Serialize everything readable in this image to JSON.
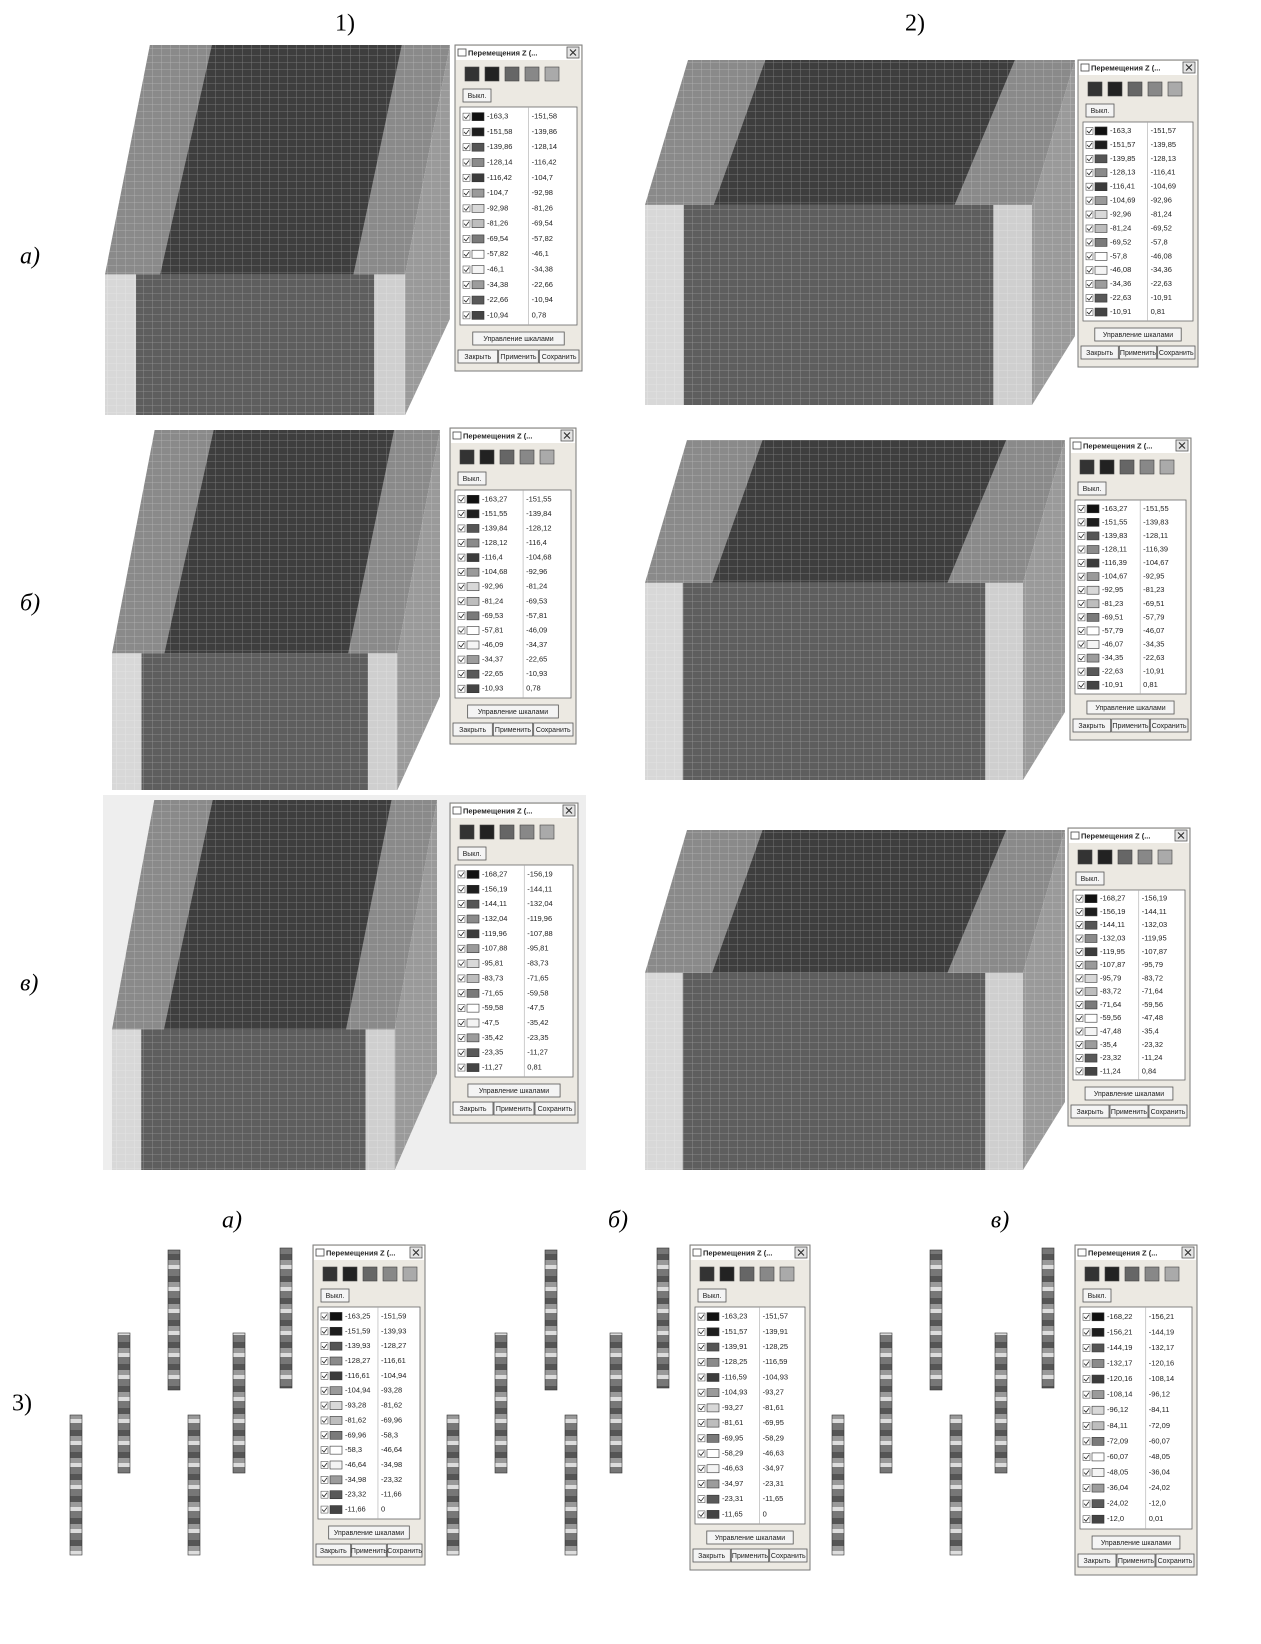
{
  "column_labels": [
    "1)",
    "2)"
  ],
  "row_labels": [
    "а)",
    "б)",
    "в)",
    "3)"
  ],
  "bottom_labels": [
    "а)",
    "б)",
    "в)"
  ],
  "dialog_ui": {
    "title": "Перемещения Z (...",
    "off_button": "Выкл.",
    "scale_button": "Управление шкалами",
    "close_button": "Закрыть",
    "apply_button": "Применить",
    "save_button": "Сохранить"
  },
  "swatch_colors": [
    "#111111",
    "#1e1e1e",
    "#555555",
    "#8a8a8a",
    "#3c3c3c",
    "#9a9a9a",
    "#d8d8d8",
    "#bdbdbd",
    "#7a7a7a",
    "#ffffff",
    "#f4f4f4",
    "#9c9c9c",
    "#595959",
    "#444444"
  ],
  "panels": [
    {
      "rows": [
        [
          "-163,3",
          "-151,58"
        ],
        [
          "-151,58",
          "-139,86"
        ],
        [
          "-139,86",
          "-128,14"
        ],
        [
          "-128,14",
          "-116,42"
        ],
        [
          "-116,42",
          "-104,7"
        ],
        [
          "-104,7",
          "-92,98"
        ],
        [
          "-92,98",
          "-81,26"
        ],
        [
          "-81,26",
          "-69,54"
        ],
        [
          "-69,54",
          "-57,82"
        ],
        [
          "-57,82",
          "-46,1"
        ],
        [
          "-46,1",
          "-34,38"
        ],
        [
          "-34,38",
          "-22,66"
        ],
        [
          "-22,66",
          "-10,94"
        ],
        [
          "-10,94",
          "0,78"
        ]
      ]
    },
    {
      "rows": [
        [
          "-163,3",
          "-151,57"
        ],
        [
          "-151,57",
          "-139,85"
        ],
        [
          "-139,85",
          "-128,13"
        ],
        [
          "-128,13",
          "-116,41"
        ],
        [
          "-116,41",
          "-104,69"
        ],
        [
          "-104,69",
          "-92,96"
        ],
        [
          "-92,96",
          "-81,24"
        ],
        [
          "-81,24",
          "-69,52"
        ],
        [
          "-69,52",
          "-57,8"
        ],
        [
          "-57,8",
          "-46,08"
        ],
        [
          "-46,08",
          "-34,36"
        ],
        [
          "-34,36",
          "-22,63"
        ],
        [
          "-22,63",
          "-10,91"
        ],
        [
          "-10,91",
          "0,81"
        ]
      ]
    },
    {
      "rows": [
        [
          "-163,27",
          "-151,55"
        ],
        [
          "-151,55",
          "-139,84"
        ],
        [
          "-139,84",
          "-128,12"
        ],
        [
          "-128,12",
          "-116,4"
        ],
        [
          "-116,4",
          "-104,68"
        ],
        [
          "-104,68",
          "-92,96"
        ],
        [
          "-92,96",
          "-81,24"
        ],
        [
          "-81,24",
          "-69,53"
        ],
        [
          "-69,53",
          "-57,81"
        ],
        [
          "-57,81",
          "-46,09"
        ],
        [
          "-46,09",
          "-34,37"
        ],
        [
          "-34,37",
          "-22,65"
        ],
        [
          "-22,65",
          "-10,93"
        ],
        [
          "-10,93",
          "0,78"
        ]
      ]
    },
    {
      "rows": [
        [
          "-163,27",
          "-151,55"
        ],
        [
          "-151,55",
          "-139,83"
        ],
        [
          "-139,83",
          "-128,11"
        ],
        [
          "-128,11",
          "-116,39"
        ],
        [
          "-116,39",
          "-104,67"
        ],
        [
          "-104,67",
          "-92,95"
        ],
        [
          "-92,95",
          "-81,23"
        ],
        [
          "-81,23",
          "-69,51"
        ],
        [
          "-69,51",
          "-57,79"
        ],
        [
          "-57,79",
          "-46,07"
        ],
        [
          "-46,07",
          "-34,35"
        ],
        [
          "-34,35",
          "-22,63"
        ],
        [
          "-22,63",
          "-10,91"
        ],
        [
          "-10,91",
          "0,81"
        ]
      ]
    },
    {
      "rows": [
        [
          "-168,27",
          "-156,19"
        ],
        [
          "-156,19",
          "-144,11"
        ],
        [
          "-144,11",
          "-132,04"
        ],
        [
          "-132,04",
          "-119,96"
        ],
        [
          "-119,96",
          "-107,88"
        ],
        [
          "-107,88",
          "-95,81"
        ],
        [
          "-95,81",
          "-83,73"
        ],
        [
          "-83,73",
          "-71,65"
        ],
        [
          "-71,65",
          "-59,58"
        ],
        [
          "-59,58",
          "-47,5"
        ],
        [
          "-47,5",
          "-35,42"
        ],
        [
          "-35,42",
          "-23,35"
        ],
        [
          "-23,35",
          "-11,27"
        ],
        [
          "-11,27",
          "0,81"
        ]
      ]
    },
    {
      "rows": [
        [
          "-168,27",
          "-156,19"
        ],
        [
          "-156,19",
          "-144,11"
        ],
        [
          "-144,11",
          "-132,03"
        ],
        [
          "-132,03",
          "-119,95"
        ],
        [
          "-119,95",
          "-107,87"
        ],
        [
          "-107,87",
          "-95,79"
        ],
        [
          "-95,79",
          "-83,72"
        ],
        [
          "-83,72",
          "-71,64"
        ],
        [
          "-71,64",
          "-59,56"
        ],
        [
          "-59,56",
          "-47,48"
        ],
        [
          "-47,48",
          "-35,4"
        ],
        [
          "-35,4",
          "-23,32"
        ],
        [
          "-23,32",
          "-11,24"
        ],
        [
          "-11,24",
          "0,84"
        ]
      ]
    },
    {
      "rows": [
        [
          "-163,25",
          "-151,59"
        ],
        [
          "-151,59",
          "-139,93"
        ],
        [
          "-139,93",
          "-128,27"
        ],
        [
          "-128,27",
          "-116,61"
        ],
        [
          "-116,61",
          "-104,94"
        ],
        [
          "-104,94",
          "-93,28"
        ],
        [
          "-93,28",
          "-81,62"
        ],
        [
          "-81,62",
          "-69,96"
        ],
        [
          "-69,96",
          "-58,3"
        ],
        [
          "-58,3",
          "-46,64"
        ],
        [
          "-46,64",
          "-34,98"
        ],
        [
          "-34,98",
          "-23,32"
        ],
        [
          "-23,32",
          "-11,66"
        ],
        [
          "-11,66",
          "0"
        ]
      ]
    },
    {
      "rows": [
        [
          "-163,23",
          "-151,57"
        ],
        [
          "-151,57",
          "-139,91"
        ],
        [
          "-139,91",
          "-128,25"
        ],
        [
          "-128,25",
          "-116,59"
        ],
        [
          "-116,59",
          "-104,93"
        ],
        [
          "-104,93",
          "-93,27"
        ],
        [
          "-93,27",
          "-81,61"
        ],
        [
          "-81,61",
          "-69,95"
        ],
        [
          "-69,95",
          "-58,29"
        ],
        [
          "-58,29",
          "-46,63"
        ],
        [
          "-46,63",
          "-34,97"
        ],
        [
          "-34,97",
          "-23,31"
        ],
        [
          "-23,31",
          "-11,65"
        ],
        [
          "-11,65",
          "0"
        ]
      ]
    },
    {
      "rows": [
        [
          "-168,22",
          "-156,21"
        ],
        [
          "-156,21",
          "-144,19"
        ],
        [
          "-144,19",
          "-132,17"
        ],
        [
          "-132,17",
          "-120,16"
        ],
        [
          "-120,16",
          "-108,14"
        ],
        [
          "-108,14",
          "-96,12"
        ],
        [
          "-96,12",
          "-84,11"
        ],
        [
          "-84,11",
          "-72,09"
        ],
        [
          "-72,09",
          "-60,07"
        ],
        [
          "-60,07",
          "-48,05"
        ],
        [
          "-48,05",
          "-36,04"
        ],
        [
          "-36,04",
          "-24,02"
        ],
        [
          "-24,02",
          "-12,0"
        ],
        [
          "-12,0",
          "0,01"
        ]
      ]
    }
  ]
}
